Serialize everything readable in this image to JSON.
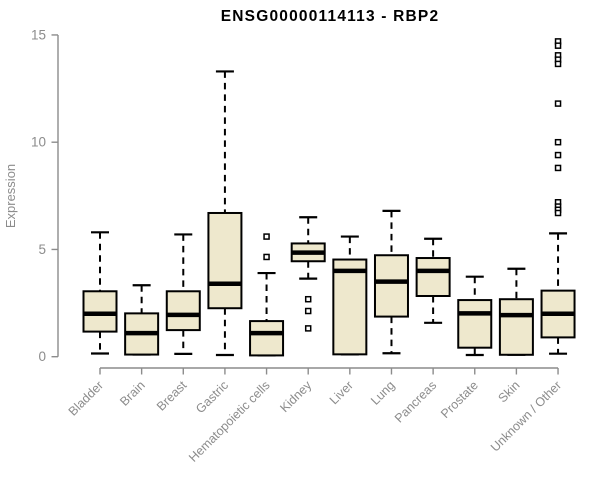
{
  "chart_data": {
    "type": "boxplot",
    "title": "ENSG00000114113 - RBP2",
    "xlabel": "",
    "ylabel": "Expression",
    "ylim": [
      0,
      15
    ],
    "yticks": [
      0,
      5,
      10,
      15
    ],
    "grid": false,
    "legend": null,
    "colors": {
      "box_fill": "#EEE8CD",
      "box_stroke": "#000000",
      "median": "#000000",
      "whisker": "#000000",
      "outlier_fill": "#ffffff",
      "axis": "#8C8C8C",
      "tick_label": "#8C8C8C",
      "title": "#000000"
    },
    "categories": [
      "Bladder",
      "Brain",
      "Breast",
      "Gastric",
      "Hematopoietic cells",
      "Kidney",
      "Liver",
      "Lung",
      "Pancreas",
      "Prostate",
      "Skin",
      "Unknown / Other"
    ],
    "series": [
      {
        "category": "Bladder",
        "min": 0.15,
        "q1": 1.17,
        "median": 2.0,
        "q3": 3.05,
        "max": 5.8,
        "outliers": []
      },
      {
        "category": "Brain",
        "min": 0.1,
        "q1": 0.1,
        "median": 1.1,
        "q3": 2.02,
        "max": 3.33,
        "outliers": []
      },
      {
        "category": "Breast",
        "min": 0.13,
        "q1": 1.24,
        "median": 1.95,
        "q3": 3.05,
        "max": 5.7,
        "outliers": []
      },
      {
        "category": "Gastric",
        "min": 0.08,
        "q1": 2.26,
        "median": 3.4,
        "q3": 6.7,
        "max": 13.3,
        "outliers": []
      },
      {
        "category": "Hematopoietic cells",
        "min": 0.06,
        "q1": 0.06,
        "median": 1.1,
        "q3": 1.66,
        "max": 3.9,
        "outliers": [
          5.6,
          4.65
        ]
      },
      {
        "category": "Kidney",
        "min": 3.64,
        "q1": 4.45,
        "median": 4.85,
        "q3": 5.28,
        "max": 6.5,
        "outliers": [
          2.68,
          2.13,
          1.32
        ]
      },
      {
        "category": "Liver",
        "min": 0.11,
        "q1": 0.11,
        "median": 4.0,
        "q3": 4.53,
        "max": 5.6,
        "outliers": []
      },
      {
        "category": "Lung",
        "min": 0.16,
        "q1": 1.87,
        "median": 3.5,
        "q3": 4.73,
        "max": 6.8,
        "outliers": []
      },
      {
        "category": "Pancreas",
        "min": 1.58,
        "q1": 2.83,
        "median": 4.0,
        "q3": 4.6,
        "max": 5.5,
        "outliers": []
      },
      {
        "category": "Prostate",
        "min": 0.08,
        "q1": 0.42,
        "median": 2.02,
        "q3": 2.64,
        "max": 3.73,
        "outliers": []
      },
      {
        "category": "Skin",
        "min": 0.09,
        "q1": 0.09,
        "median": 1.94,
        "q3": 2.68,
        "max": 4.1,
        "outliers": []
      },
      {
        "category": "Unknown / Other",
        "min": 0.14,
        "q1": 0.9,
        "median": 2.0,
        "q3": 3.08,
        "max": 5.75,
        "outliers": [
          14.7,
          14.5,
          14.05,
          13.85,
          13.65,
          11.8,
          10.0,
          9.4,
          8.8,
          7.2,
          7.0,
          6.85,
          6.7
        ]
      }
    ]
  }
}
